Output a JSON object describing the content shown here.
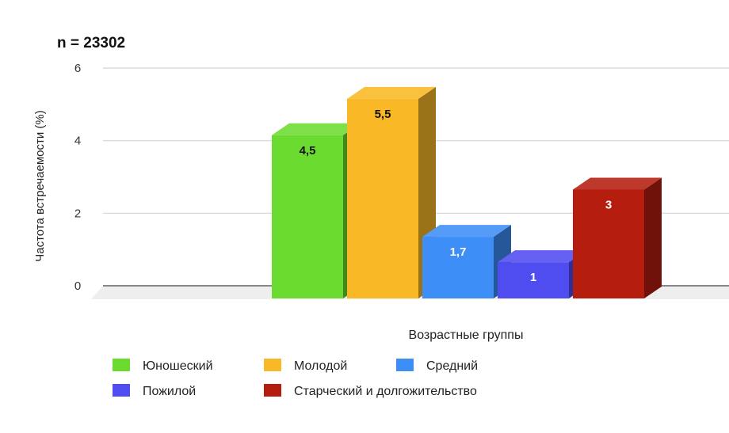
{
  "chart_data": {
    "type": "bar",
    "title": "n = 23302",
    "xlabel": "Возрастные группы",
    "ylabel": "Частота встречаемости (%)",
    "ylim": [
      0,
      6
    ],
    "yticks": [
      0,
      2,
      4,
      6
    ],
    "grid": true,
    "legend_position": "bottom",
    "categories": [
      "Юношеский",
      "Молодой",
      "Средний",
      "Пожилой",
      "Старческий и долгожительство"
    ],
    "values": [
      4.5,
      5.5,
      1.7,
      1,
      3
    ],
    "value_labels": [
      "4,5",
      "5,5",
      "1,7",
      "1",
      "3"
    ],
    "colors": [
      "#6CDB2F",
      "#F9B825",
      "#3E8EF7",
      "#4F4CF0",
      "#B51D0E"
    ],
    "label_colors": [
      "#111111",
      "#111111",
      "#ffffff",
      "#ffffff",
      "#ffffff"
    ]
  }
}
